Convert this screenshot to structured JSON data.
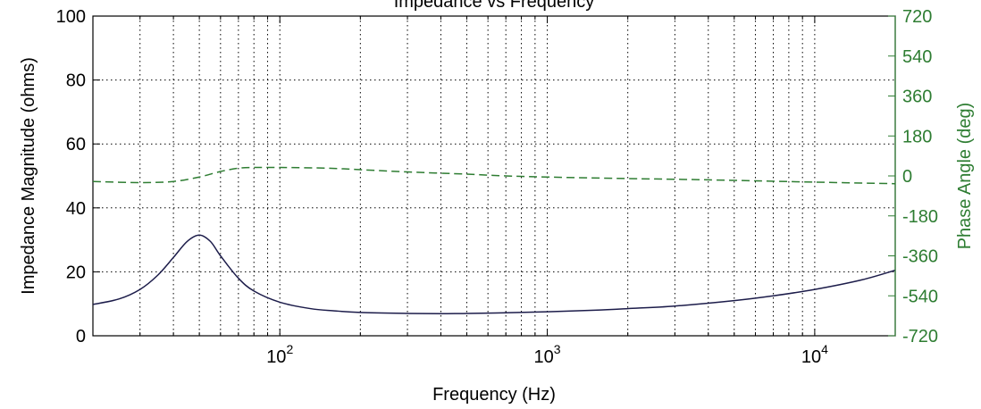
{
  "chart_data": {
    "type": "line",
    "title": "Impedance vs Frequency",
    "xlabel": "Frequency (Hz)",
    "ylabel_left": "Impedance Magnitude (ohms)",
    "ylabel_right": "Phase Angle (deg)",
    "x_scale": "log",
    "xlim": [
      20,
      20000
    ],
    "ylim_left": [
      0,
      100
    ],
    "ylim_right": [
      -720,
      720
    ],
    "grid": true,
    "grid_style": "dotted",
    "x_tick_labels": [
      {
        "base": "10",
        "exp": "2",
        "value": 100
      },
      {
        "base": "10",
        "exp": "3",
        "value": 1000
      },
      {
        "base": "10",
        "exp": "4",
        "value": 10000
      }
    ],
    "y_left_ticks": [
      "0",
      "20",
      "40",
      "60",
      "80",
      "100"
    ],
    "y_right_ticks": [
      "-720",
      "-540",
      "-360",
      "-180",
      "0",
      "180",
      "360",
      "540",
      "720"
    ],
    "colors": {
      "impedance": "#1c1c4a",
      "phase": "#2e7d32",
      "right_axis": "#2e7d32",
      "axes": "#000000",
      "grid": "#000000"
    },
    "series": [
      {
        "axis": "left",
        "line_style": "solid",
        "points": [
          [
            20,
            9.8
          ],
          [
            25,
            11.5
          ],
          [
            30,
            14.5
          ],
          [
            35,
            19
          ],
          [
            40,
            24.5
          ],
          [
            45,
            29.5
          ],
          [
            50,
            31.5
          ],
          [
            55,
            29.5
          ],
          [
            60,
            25
          ],
          [
            70,
            18
          ],
          [
            80,
            14
          ],
          [
            100,
            10.5
          ],
          [
            130,
            8.5
          ],
          [
            160,
            7.8
          ],
          [
            200,
            7.3
          ],
          [
            300,
            7.0
          ],
          [
            400,
            6.9
          ],
          [
            500,
            7.0
          ],
          [
            700,
            7.2
          ],
          [
            1000,
            7.5
          ],
          [
            1500,
            8.0
          ],
          [
            2000,
            8.5
          ],
          [
            3000,
            9.3
          ],
          [
            5000,
            11.0
          ],
          [
            7000,
            12.5
          ],
          [
            10000,
            14.5
          ],
          [
            15000,
            17.5
          ],
          [
            20000,
            20.5
          ]
        ]
      },
      {
        "axis": "right",
        "line_style": "dashed",
        "points": [
          [
            20,
            -25
          ],
          [
            30,
            -30
          ],
          [
            40,
            -25
          ],
          [
            50,
            -5
          ],
          [
            60,
            20
          ],
          [
            70,
            35
          ],
          [
            80,
            38
          ],
          [
            100,
            38
          ],
          [
            150,
            35
          ],
          [
            200,
            28
          ],
          [
            300,
            18
          ],
          [
            500,
            8
          ],
          [
            700,
            0
          ],
          [
            1000,
            -5
          ],
          [
            2000,
            -12
          ],
          [
            3000,
            -15
          ],
          [
            5000,
            -20
          ],
          [
            10000,
            -28
          ],
          [
            20000,
            -35
          ]
        ]
      }
    ]
  }
}
